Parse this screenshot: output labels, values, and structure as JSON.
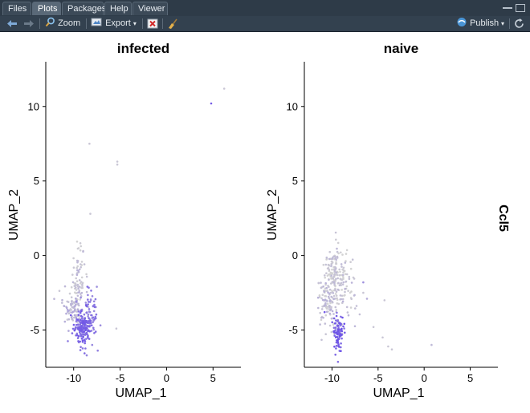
{
  "tabs": [
    "Files",
    "Plots",
    "Packages",
    "Help",
    "Viewer"
  ],
  "active_tab": "Plots",
  "toolbar": {
    "zoom_label": "Zoom",
    "export_label": "Export",
    "publish_label": "Publish"
  },
  "colors": {
    "low": "#d3d3d3",
    "high": "#6a4fe8",
    "toolbar_bg": "#33414f"
  },
  "icons": [
    "back-arrow-icon",
    "forward-arrow-icon",
    "zoom-icon",
    "export-icon",
    "remove-plot-icon",
    "clear-plots-icon",
    "publish-icon"
  ],
  "chart_data": [
    {
      "type": "scatter",
      "title": "infected",
      "xlabel": "UMAP_1",
      "ylabel": "UMAP_2",
      "xlim": [
        -13,
        8
      ],
      "ylim": [
        -7.5,
        13
      ],
      "xticks": [
        -10,
        -5,
        0,
        5
      ],
      "yticks": [
        -5,
        0,
        5,
        10
      ],
      "feature": "Ccl5",
      "points": [
        {
          "x": 4.8,
          "y": 10.2,
          "level": 0.9
        },
        {
          "x": 6.2,
          "y": 11.2,
          "level": 0.1
        },
        {
          "x": -8.3,
          "y": 7.5,
          "level": 0.1
        },
        {
          "x": -5.3,
          "y": 6.3,
          "level": 0.1
        },
        {
          "x": -5.3,
          "y": 6.1,
          "level": 0.1
        },
        {
          "x": -8.2,
          "y": 2.8,
          "level": 0.1
        },
        {
          "x": -7.5,
          "y": -2.1,
          "level": 0.5
        },
        {
          "x": -5.4,
          "y": -4.9,
          "level": 0.1
        },
        {
          "x": -10.3,
          "y": -4.0,
          "level": 0.9
        },
        {
          "x": -10.8,
          "y": -3.9,
          "level": 0.3
        }
      ],
      "clusters": [
        {
          "cx": -9.5,
          "cy": -1.5,
          "sx": 0.35,
          "sy": 1.2,
          "n": 70,
          "level": 0.1
        },
        {
          "cx": -10.0,
          "cy": -3.6,
          "sx": 0.6,
          "sy": 0.6,
          "n": 90,
          "level": 0.2
        },
        {
          "cx": -9.1,
          "cy": -4.9,
          "sx": 0.45,
          "sy": 0.55,
          "n": 150,
          "level": 0.8
        },
        {
          "cx": -8.3,
          "cy": -4.0,
          "sx": 0.5,
          "sy": 0.9,
          "n": 70,
          "level": 0.65
        }
      ]
    },
    {
      "type": "scatter",
      "title": "naive",
      "xlabel": "UMAP_1",
      "ylabel": "UMAP_2",
      "xlim": [
        -13,
        8
      ],
      "ylim": [
        -7.5,
        13
      ],
      "xticks": [
        -10,
        -5,
        0,
        5
      ],
      "yticks": [
        -5,
        0,
        5,
        10
      ],
      "feature": "Ccl5",
      "points": [
        {
          "x": -6.6,
          "y": -1.8,
          "level": 0.5
        },
        {
          "x": -6.2,
          "y": -2.9,
          "level": 0.3
        },
        {
          "x": -4.3,
          "y": -3.0,
          "level": 0.1
        },
        {
          "x": -5.5,
          "y": -4.8,
          "level": 0.1
        },
        {
          "x": -4.5,
          "y": -5.5,
          "level": 0.1
        },
        {
          "x": -3.9,
          "y": -6.1,
          "level": 0.1
        },
        {
          "x": -3.5,
          "y": -6.3,
          "level": 0.1
        },
        {
          "x": 0.8,
          "y": -6.0,
          "level": 0.2
        },
        {
          "x": -10.8,
          "y": -3.8,
          "level": 0.9
        },
        {
          "x": -6.6,
          "y": -2.5,
          "level": 0.1
        }
      ],
      "clusters": [
        {
          "cx": -9.8,
          "cy": -1.3,
          "sx": 0.8,
          "sy": 0.9,
          "n": 180,
          "level": 0.05
        },
        {
          "cx": -10.5,
          "cy": -3.3,
          "sx": 0.55,
          "sy": 0.7,
          "n": 90,
          "level": 0.12
        },
        {
          "cx": -9.3,
          "cy": -5.2,
          "sx": 0.3,
          "sy": 0.6,
          "n": 90,
          "level": 0.85
        },
        {
          "cx": -8.5,
          "cy": -2.8,
          "sx": 0.7,
          "sy": 1.1,
          "n": 40,
          "level": 0.1
        }
      ]
    }
  ]
}
